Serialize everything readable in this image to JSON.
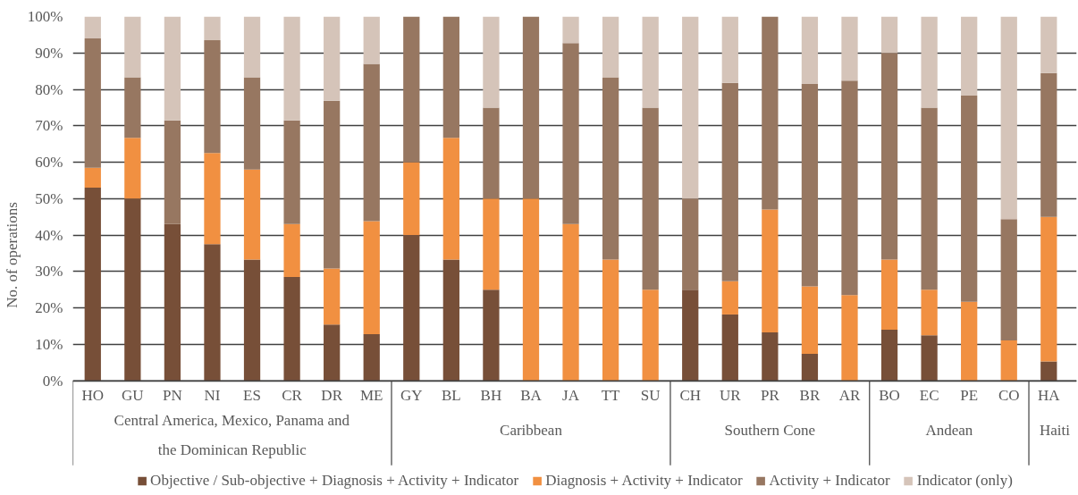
{
  "chart_data": {
    "type": "bar",
    "stacked": true,
    "ylabel": "No. of operations",
    "categories": [
      "HO",
      "GU",
      "PN",
      "NI",
      "ES",
      "CR",
      "DR",
      "ME",
      "GY",
      "BL",
      "BH",
      "BA",
      "JA",
      "TT",
      "SU",
      "CH",
      "UR",
      "PR",
      "BR",
      "AR",
      "BO",
      "EC",
      "PE",
      "CO",
      "HA"
    ],
    "series": [
      {
        "name": "Objective / Sub-objective + Diagnosis + Activity + Indicator",
        "color": "#774f38",
        "values": [
          53,
          50,
          43,
          37.5,
          33.3,
          28.5,
          15.4,
          12.8,
          40,
          33.3,
          25,
          0,
          0,
          0,
          0,
          25,
          18.2,
          13.3,
          7.4,
          0,
          14,
          12.5,
          0,
          0,
          5.3
        ]
      },
      {
        "name": "Diagnosis + Activity + Indicator",
        "color": "#f19041",
        "values": [
          5.5,
          16.7,
          0,
          25,
          24.7,
          14.5,
          15.4,
          31,
          20,
          33.4,
          25,
          50,
          43,
          33.3,
          25,
          0,
          9.1,
          33.7,
          18.5,
          23.5,
          19.3,
          12.5,
          21.7,
          11.1,
          39.7
        ]
      },
      {
        "name": "Activity + Indicator",
        "color": "#977761",
        "values": [
          35.5,
          16.6,
          28.5,
          31,
          25.3,
          28.5,
          46.1,
          43.2,
          40,
          33.3,
          25,
          50,
          49.7,
          50,
          50,
          25,
          54.5,
          53,
          55.6,
          58.9,
          56.7,
          50,
          56.6,
          33.3,
          39.5
        ]
      },
      {
        "name": "Indicator (only)",
        "color": "#d5c4b9",
        "values": [
          6,
          16.7,
          28.5,
          6.5,
          16.7,
          28.5,
          23.1,
          13,
          0,
          0,
          25,
          0,
          7.3,
          16.7,
          25,
          50,
          18.2,
          0,
          18.5,
          17.6,
          10,
          25,
          21.7,
          55.6,
          15.5
        ]
      }
    ],
    "annotations": [
      "Central America, Mexico, Panama and the Dominican Republic",
      "Caribbean",
      "Southern Cone",
      "Andean",
      "Haiti"
    ],
    "ylim": [
      0,
      100
    ],
    "yticks": [
      {
        "value": 0,
        "label": "0%"
      },
      {
        "value": 10,
        "label": "10%"
      },
      {
        "value": 20,
        "label": "20%"
      },
      {
        "value": 30,
        "label": "30%"
      },
      {
        "value": 40,
        "label": "40%"
      },
      {
        "value": 50,
        "label": "50%"
      },
      {
        "value": 60,
        "label": "60%"
      },
      {
        "value": 70,
        "label": "70%"
      },
      {
        "value": 80,
        "label": "80%"
      },
      {
        "value": 90,
        "label": "90%"
      },
      {
        "value": 100,
        "label": "100%"
      }
    ],
    "grid": "y",
    "legend": "bottom"
  }
}
